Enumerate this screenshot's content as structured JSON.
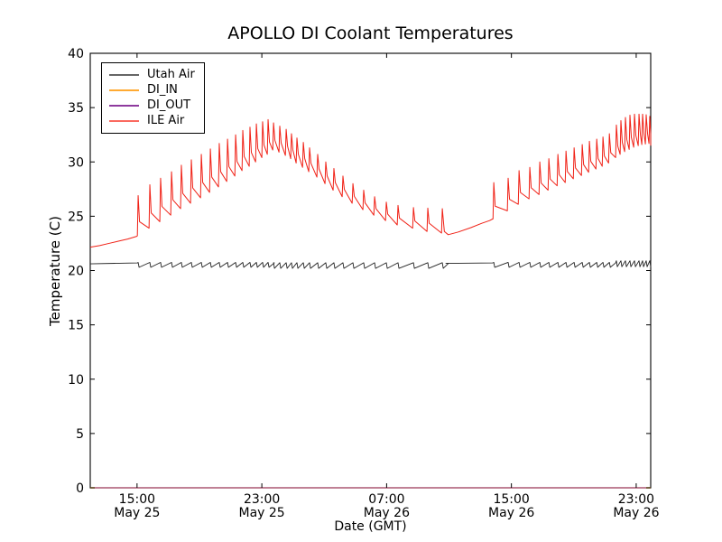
{
  "chart_data": {
    "type": "line",
    "title": "APOLLO DI Coolant Temperatures",
    "xlabel": "Date (GMT)",
    "ylabel": "Temperature (C)",
    "x_unit": "hours since May 25 00:00 GMT",
    "xlim": [
      12.0,
      47.93
    ],
    "ylim": [
      0,
      40
    ],
    "grid": false,
    "frame_color": "#000000",
    "yticks": [
      0,
      5,
      10,
      15,
      20,
      25,
      30,
      35,
      40
    ],
    "xticks": [
      {
        "t": 15,
        "time": "15:00",
        "date": "May 25"
      },
      {
        "t": 23,
        "time": "23:00",
        "date": "May 25"
      },
      {
        "t": 31,
        "time": "07:00",
        "date": "May 26"
      },
      {
        "t": 39,
        "time": "15:00",
        "date": "May 26"
      },
      {
        "t": 47,
        "time": "23:00",
        "date": "May 26"
      }
    ],
    "legend": {
      "position": "upper-left",
      "entries": [
        {
          "label": "Utah Air",
          "color": "#666666"
        },
        {
          "label": "DI_IN",
          "color": "#ffaa33"
        },
        {
          "label": "DI_OUT",
          "color": "#8e3a9e"
        },
        {
          "label": "ILE Air",
          "color": "#fa6a60"
        }
      ]
    },
    "series": [
      {
        "name": "Utah Air",
        "color": "#222222",
        "width": 0.9,
        "segments": [
          {
            "type": "points",
            "pts": [
              [
                12.0,
                20.62
              ],
              [
                14.2,
                20.68
              ],
              [
                15.02,
                20.7
              ]
            ]
          },
          {
            "type": "teeth",
            "hi": 20.75,
            "lo": 20.3,
            "t": [
              15.07,
              15.82,
              16.51,
              17.21,
              17.84,
              18.48,
              19.12,
              19.7,
              20.27,
              20.8,
              21.32,
              21.78,
              22.24,
              22.65,
              23.05,
              23.4
            ]
          },
          {
            "type": "teeth",
            "hi": 20.72,
            "lo": 20.2,
            "t": [
              23.75,
              24.15,
              24.56,
              24.9,
              25.25,
              25.66,
              26.06,
              26.58,
              27.1,
              27.62,
              28.2,
              28.84,
              29.53,
              30.23,
              30.98,
              31.73,
              32.72,
              33.64,
              34.57
            ]
          },
          {
            "type": "points",
            "pts": [
              [
                34.8,
                20.66
              ],
              [
                37.8,
                20.7
              ]
            ]
          },
          {
            "type": "teeth",
            "hi": 20.75,
            "lo": 20.3,
            "t": [
              37.87,
              38.79,
              39.49,
              40.18,
              40.82,
              41.4,
              41.98,
              42.5,
              43.02,
              43.54,
              44.0,
              44.47,
              44.87,
              45.28
            ]
          },
          {
            "type": "teeth",
            "hi": 20.9,
            "lo": 20.35,
            "t": [
              45.73,
              46.02,
              46.31,
              46.6,
              46.89,
              47.18,
              47.41,
              47.64,
              47.87
            ]
          },
          {
            "type": "points",
            "pts": [
              [
                47.93,
                20.6
              ]
            ]
          }
        ]
      },
      {
        "name": "DI_IN",
        "color": "#ffaa33",
        "width": 1.6,
        "segments": [
          {
            "type": "points",
            "pts": [
              [
                12.0,
                0
              ],
              [
                47.93,
                0
              ]
            ]
          }
        ]
      },
      {
        "name": "DI_OUT",
        "color": "#8e3a9e",
        "width": 1.0,
        "segments": [
          {
            "type": "points",
            "pts": [
              [
                12.0,
                0
              ],
              [
                47.93,
                0
              ]
            ]
          }
        ]
      },
      {
        "name": "ILE Air",
        "color": "#f02015",
        "width": 1.0,
        "segments": [
          {
            "type": "points",
            "pts": [
              [
                12.0,
                22.15
              ],
              [
                12.6,
                22.3
              ],
              [
                13.2,
                22.5
              ],
              [
                13.8,
                22.7
              ],
              [
                14.4,
                22.9
              ],
              [
                14.98,
                23.15
              ]
            ]
          },
          {
            "type": "spikes",
            "t": [
              15.07,
              15.82,
              16.51,
              17.21,
              17.84,
              18.48,
              19.12,
              19.7,
              20.27,
              20.8,
              21.32,
              21.78,
              22.24,
              22.65,
              23.05,
              23.4
            ],
            "base": [
              23.2,
              23.9,
              24.5,
              25.1,
              25.7,
              26.2,
              26.7,
              27.2,
              27.7,
              28.2,
              28.7,
              29.2,
              29.6,
              30.0,
              30.4,
              30.7
            ],
            "peak": [
              26.9,
              27.9,
              28.5,
              29.1,
              29.7,
              30.2,
              30.7,
              31.2,
              31.7,
              32.1,
              32.5,
              32.9,
              33.2,
              33.5,
              33.7,
              33.9
            ]
          },
          {
            "type": "spikes",
            "t": [
              23.75,
              24.15,
              24.56,
              24.9,
              25.25,
              25.66,
              26.06,
              26.58,
              27.1,
              27.62,
              28.2,
              28.84,
              29.53,
              30.23,
              30.98,
              31.73,
              32.72,
              33.64,
              34.57
            ],
            "base": [
              31.1,
              30.9,
              30.6,
              30.3,
              29.9,
              29.5,
              29.1,
              28.6,
              28.0,
              27.4,
              26.8,
              26.2,
              25.6,
              25.1,
              24.6,
              24.2,
              23.9,
              23.6,
              23.45
            ],
            "peak": [
              33.6,
              33.3,
              33.0,
              32.6,
              32.2,
              31.8,
              31.3,
              30.7,
              30.0,
              29.4,
              28.7,
              28.0,
              27.4,
              26.8,
              26.3,
              26.0,
              25.8,
              25.75,
              25.7
            ]
          },
          {
            "type": "points",
            "pts": [
              [
                34.7,
                23.6
              ],
              [
                34.95,
                23.3
              ],
              [
                35.6,
                23.55
              ],
              [
                36.4,
                23.95
              ],
              [
                37.1,
                24.35
              ],
              [
                37.6,
                24.6
              ],
              [
                37.8,
                24.75
              ]
            ]
          },
          {
            "type": "spikes",
            "t": [
              37.87,
              38.79,
              39.49,
              40.18,
              40.82,
              41.4,
              41.98,
              42.5,
              43.02,
              43.54,
              44.0,
              44.47,
              44.87,
              45.28,
              45.73,
              46.02,
              46.31,
              46.6,
              46.89,
              47.18,
              47.41,
              47.64,
              47.87
            ],
            "base": [
              24.75,
              25.5,
              26.1,
              26.6,
              27.0,
              27.4,
              27.8,
              28.1,
              28.45,
              28.75,
              29.05,
              29.35,
              29.6,
              29.9,
              30.4,
              30.7,
              30.95,
              31.15,
              31.35,
              31.5,
              31.6,
              31.65,
              31.7
            ],
            "peak": [
              28.1,
              28.5,
              29.2,
              29.5,
              30.0,
              30.3,
              30.7,
              31.0,
              31.3,
              31.6,
              31.9,
              32.1,
              32.3,
              32.6,
              33.4,
              33.8,
              34.1,
              34.3,
              34.4,
              34.4,
              34.4,
              34.35,
              34.2
            ]
          },
          {
            "type": "points",
            "pts": [
              [
                47.93,
                31.5
              ]
            ]
          }
        ]
      }
    ]
  }
}
